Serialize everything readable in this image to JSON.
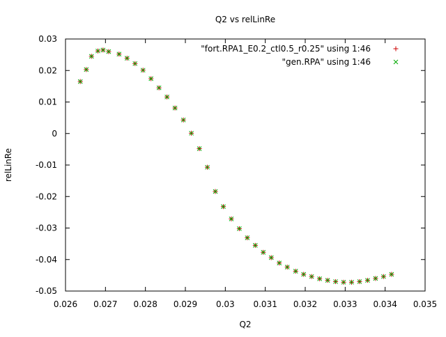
{
  "chart_data": {
    "type": "scatter",
    "title": "Q2 vs relLinRe",
    "xlabel": "Q2",
    "ylabel": "relLinRe",
    "xlim": [
      0.026,
      0.035
    ],
    "ylim": [
      -0.05,
      0.03
    ],
    "xticks": [
      0.026,
      0.027,
      0.028,
      0.029,
      0.03,
      0.031,
      0.032,
      0.033,
      0.034,
      0.035
    ],
    "xtick_labels": [
      "0.026",
      "0.027",
      "0.028",
      "0.029",
      "0.03",
      "0.031",
      "0.032",
      "0.033",
      "0.034",
      "0.035"
    ],
    "yticks": [
      0.03,
      0.02,
      0.01,
      0,
      -0.01,
      -0.02,
      -0.03,
      -0.04,
      -0.05
    ],
    "ytick_labels": [
      "0.03",
      "0.02",
      "0.01",
      "0",
      "-0.01",
      "-0.02",
      "-0.03",
      "-0.04",
      "-0.05"
    ],
    "grid": false,
    "legend_position": "top-right",
    "series": [
      {
        "name": "\"fort.RPA1_E0.2_ctl0.5_r0.25\" using 1:46",
        "marker": "plus",
        "color": "#cc0000"
      },
      {
        "name": "\"gen.RPA\" using 1:46",
        "marker": "cross",
        "color": "#00aa00"
      }
    ],
    "x": [
      0.02637,
      0.02652,
      0.02665,
      0.02681,
      0.02694,
      0.02708,
      0.02734,
      0.02754,
      0.02774,
      0.02794,
      0.02814,
      0.02834,
      0.02854,
      0.02874,
      0.02895,
      0.02915,
      0.02935,
      0.02955,
      0.02975,
      0.02995,
      0.03015,
      0.03035,
      0.03055,
      0.03075,
      0.03095,
      0.03115,
      0.03135,
      0.03155,
      0.03176,
      0.03196,
      0.03216,
      0.03236,
      0.03256,
      0.03276,
      0.03296,
      0.03316,
      0.03336,
      0.03356,
      0.03376,
      0.03396,
      0.03416
    ],
    "y": [
      0.0165,
      0.0203,
      0.0245,
      0.0262,
      0.0265,
      0.026,
      0.0252,
      0.0239,
      0.0222,
      0.0201,
      0.0174,
      0.0145,
      0.0116,
      0.0081,
      0.0043,
      0.0001,
      -0.0048,
      -0.0107,
      -0.0184,
      -0.0232,
      -0.0271,
      -0.0302,
      -0.0331,
      -0.0355,
      -0.0377,
      -0.0394,
      -0.0411,
      -0.0424,
      -0.0437,
      -0.0447,
      -0.0454,
      -0.0461,
      -0.0466,
      -0.047,
      -0.0472,
      -0.0472,
      -0.047,
      -0.0466,
      -0.046,
      -0.0454,
      -0.0447
    ]
  }
}
